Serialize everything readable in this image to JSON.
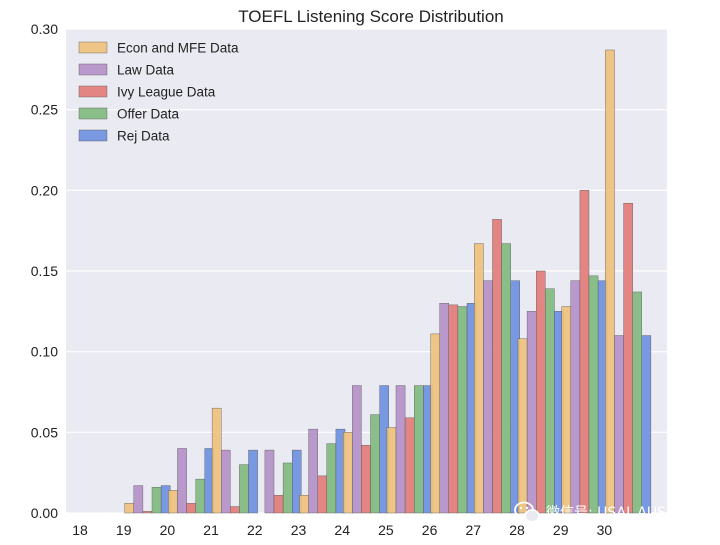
{
  "chart_data": {
    "type": "bar",
    "title": "TOEFL Listening Score Distribution",
    "xlabel": "",
    "ylabel": "",
    "categories": [
      "18",
      "19",
      "20",
      "21",
      "22",
      "23",
      "24",
      "25",
      "26",
      "27",
      "28",
      "29",
      "30"
    ],
    "ylim": [
      0,
      0.3
    ],
    "yticks": [
      "0.00",
      "0.05",
      "0.10",
      "0.15",
      "0.20",
      "0.25",
      "0.30"
    ],
    "grid": true,
    "legend_position": "top-left",
    "series": [
      {
        "name": "Econ and MFE Data",
        "color": "#eec17a",
        "values": [
          0.0,
          0.006,
          0.014,
          0.065,
          0.0,
          0.011,
          0.05,
          0.053,
          0.111,
          0.167,
          0.108,
          0.128,
          0.287
        ]
      },
      {
        "name": "Law Data",
        "color": "#b48fc6",
        "values": [
          0.0,
          0.017,
          0.04,
          0.039,
          0.039,
          0.052,
          0.079,
          0.079,
          0.13,
          0.144,
          0.125,
          0.144,
          0.11
        ]
      },
      {
        "name": "Ivy League Data",
        "color": "#e17a77",
        "values": [
          0.0,
          0.001,
          0.006,
          0.004,
          0.011,
          0.023,
          0.042,
          0.059,
          0.129,
          0.182,
          0.15,
          0.2,
          0.192
        ]
      },
      {
        "name": "Offer Data",
        "color": "#80b97d",
        "values": [
          0.0,
          0.016,
          0.021,
          0.03,
          0.031,
          0.043,
          0.061,
          0.079,
          0.128,
          0.167,
          0.139,
          0.147,
          0.137
        ]
      },
      {
        "name": "Rej Data",
        "color": "#6b8fe0",
        "values": [
          0.0,
          0.017,
          0.04,
          0.039,
          0.039,
          0.052,
          0.079,
          0.079,
          0.13,
          0.144,
          0.125,
          0.144,
          0.11
        ]
      }
    ]
  },
  "watermark": {
    "icon": "wechat-icon",
    "text": "微信号: USAI_AUS"
  }
}
